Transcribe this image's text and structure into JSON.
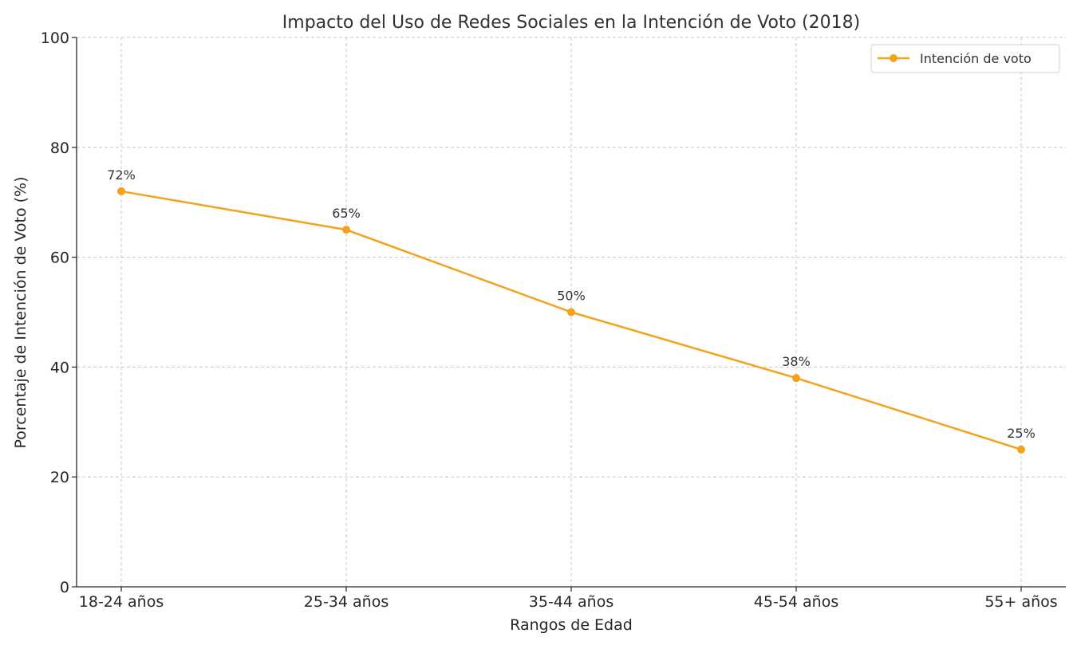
{
  "chart_data": {
    "type": "line",
    "title": "Impacto del Uso de Redes Sociales en la Intención de Voto (2018)",
    "xlabel": "Rangos de Edad",
    "ylabel": "Porcentaje de Intención de Voto (%)",
    "categories": [
      "18-24 años",
      "25-34 años",
      "35-44 años",
      "45-54 años",
      "55+ años"
    ],
    "series": [
      {
        "name": "Intención de voto",
        "values": [
          72,
          65,
          50,
          38,
          25
        ],
        "data_labels": [
          "72%",
          "65%",
          "50%",
          "38%",
          "25%"
        ],
        "color": "#f5a21b"
      }
    ],
    "ylim": [
      0,
      100
    ],
    "yticks": [
      0,
      20,
      40,
      60,
      80,
      100
    ],
    "grid": true,
    "legend_position": "top-right"
  }
}
